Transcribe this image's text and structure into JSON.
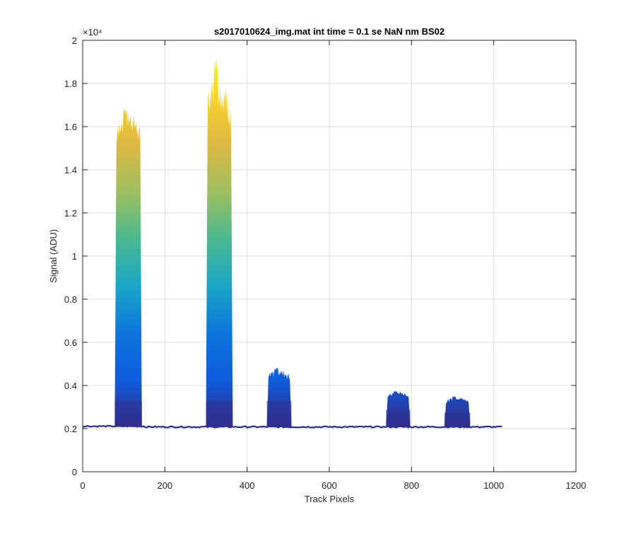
{
  "chart_data": {
    "type": "area",
    "title": "s2017010624_img.mat int time = 0.1 se  NaN nm BS02",
    "xlabel": "Track Pixels",
    "ylabel": "Signal (ADU)",
    "xlim": [
      0,
      1200
    ],
    "ylim": [
      0,
      20000
    ],
    "x_ticks": [
      0,
      200,
      400,
      600,
      800,
      1000,
      1200
    ],
    "x_tick_labels": [
      "0",
      "200",
      "400",
      "600",
      "800",
      "1000",
      "1200"
    ],
    "y_ticks": [
      0,
      2000,
      4000,
      6000,
      8000,
      10000,
      12000,
      14000,
      16000,
      18000,
      20000
    ],
    "y_tick_labels": [
      "0",
      "0.2",
      "0.4",
      "0.6",
      "0.8",
      "1",
      "1.2",
      "1.4",
      "1.6",
      "1.8",
      "2"
    ],
    "y_exponent_label": "×10⁴",
    "grid": true,
    "baseline": 2080,
    "x_extent": [
      0,
      1023
    ],
    "peaks": [
      {
        "name": "peak-1",
        "x_start": 78,
        "x_end": 144,
        "top": 16300,
        "max": 16900
      },
      {
        "name": "peak-2",
        "x_start": 300,
        "x_end": 365,
        "top": 18000,
        "max": 19200
      },
      {
        "name": "peak-3",
        "x_start": 448,
        "x_end": 508,
        "top": 4600,
        "max": 4850
      },
      {
        "name": "peak-4",
        "x_start": 738,
        "x_end": 797,
        "top": 3650,
        "max": 3750
      },
      {
        "name": "peak-5",
        "x_start": 880,
        "x_end": 943,
        "top": 3400,
        "max": 3500
      }
    ],
    "colormap": [
      "#352a87",
      "#0f5cdd",
      "#0d75dc",
      "#1aa6c7",
      "#4ab98f",
      "#9ebf60",
      "#dcb843",
      "#f9d22c",
      "#f9fb0e"
    ]
  }
}
